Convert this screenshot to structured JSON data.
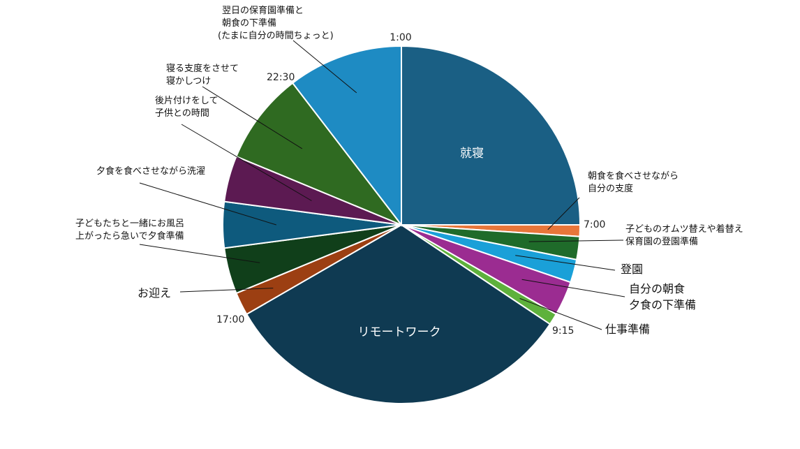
{
  "chart_data": {
    "type": "pie",
    "start_angle_deg": 0,
    "direction": "clockwise",
    "total_minutes": 1440,
    "slices": [
      {
        "key": "shuushin",
        "label": [
          "就寝"
        ],
        "start": "1:00",
        "minutes": 360,
        "color": "#1a5f84"
      },
      {
        "key": "choushoku",
        "label": [
          "朝食を食べさせながら",
          "自分の支度"
        ],
        "start": "7:00",
        "minutes": 15,
        "color": "#e8763a"
      },
      {
        "key": "omutsu",
        "label": [
          "子どものオムツ替えや着替え",
          "保育園の登園準備"
        ],
        "start": "7:15",
        "minutes": 30,
        "color": "#1f6b2a"
      },
      {
        "key": "touen",
        "label": [
          "登園"
        ],
        "start": "7:45",
        "minutes": 30,
        "color": "#1aa0d8"
      },
      {
        "key": "jibun",
        "label": [
          "自分の朝食",
          "夕食の下準備"
        ],
        "start": "8:15",
        "minutes": 45,
        "color": "#9b2c91"
      },
      {
        "key": "shigoto",
        "label": [
          "仕事準備"
        ],
        "start": "9:00",
        "minutes": 15,
        "color": "#5eb13c"
      },
      {
        "key": "remote",
        "label": [
          "リモートワーク"
        ],
        "start": "9:15",
        "minutes": 465,
        "color": "#0f3a52"
      },
      {
        "key": "omukae",
        "label": [
          "お迎え"
        ],
        "start": "17:00",
        "minutes": 30,
        "color": "#9c3f12"
      },
      {
        "key": "ofuro",
        "label": [
          "子どもたちと一緒にお風呂",
          "上がったら急いで夕食準備"
        ],
        "start": "17:30",
        "minutes": 60,
        "color": "#103f1a"
      },
      {
        "key": "sentaku",
        "label": [
          "夕食を食べさせながら洗濯"
        ],
        "start": "18:30",
        "minutes": 60,
        "color": "#0e5a7d"
      },
      {
        "key": "atokata",
        "label": [
          "後片付けをして",
          "子供との時間"
        ],
        "start": "19:30",
        "minutes": 60,
        "color": "#5c1a52"
      },
      {
        "key": "nekashi",
        "label": [
          "寝る支度をさせて",
          "寝かしつけ"
        ],
        "start": "20:30",
        "minutes": 120,
        "color": "#2f6a21"
      },
      {
        "key": "yokujitsu",
        "label": [
          "翌日の保育園準備と",
          "朝食の下準備",
          "(たまに自分の時間ちょっと)"
        ],
        "start": "22:30",
        "minutes": 150,
        "color": "#1e8bc3"
      }
    ],
    "time_markers": [
      "1:00",
      "7:00",
      "9:15",
      "17:00",
      "22:30"
    ]
  }
}
